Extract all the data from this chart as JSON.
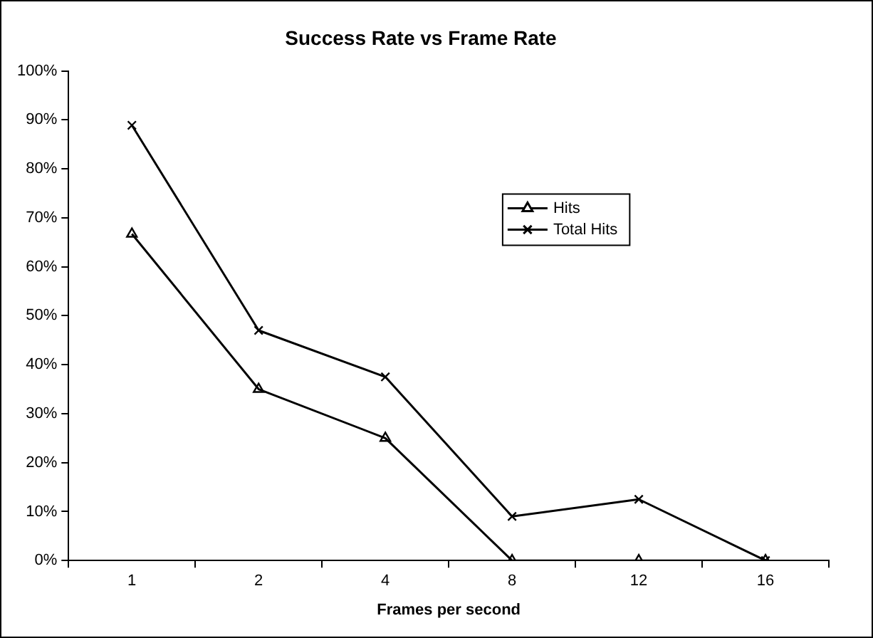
{
  "chart_data": {
    "type": "line",
    "title": "Success Rate vs Frame Rate",
    "xlabel": "Frames per second",
    "categories": [
      "1",
      "2",
      "4",
      "8",
      "12",
      "16"
    ],
    "series": [
      {
        "name": "Hits",
        "color": "#000000",
        "marker": "triangle",
        "values": [
          66.7,
          35,
          25,
          0,
          0,
          0
        ]
      },
      {
        "name": "Total Hits",
        "color": "#000000",
        "marker": "cross",
        "values": [
          88.9,
          47,
          37.5,
          9,
          12.5,
          0
        ]
      }
    ],
    "ylim": [
      0,
      100
    ],
    "yticks": [
      {
        "value": 0,
        "label": "0%"
      },
      {
        "value": 10,
        "label": "10%"
      },
      {
        "value": 20,
        "label": "20%"
      },
      {
        "value": 30,
        "label": "30%"
      },
      {
        "value": 40,
        "label": "40%"
      },
      {
        "value": 50,
        "label": "50%"
      },
      {
        "value": 60,
        "label": "60%"
      },
      {
        "value": 70,
        "label": "70%"
      },
      {
        "value": 80,
        "label": "80%"
      },
      {
        "value": 90,
        "label": "90%"
      },
      {
        "value": 100,
        "label": "100%"
      }
    ],
    "grid": false,
    "legend": "right",
    "line_style": "solid"
  }
}
